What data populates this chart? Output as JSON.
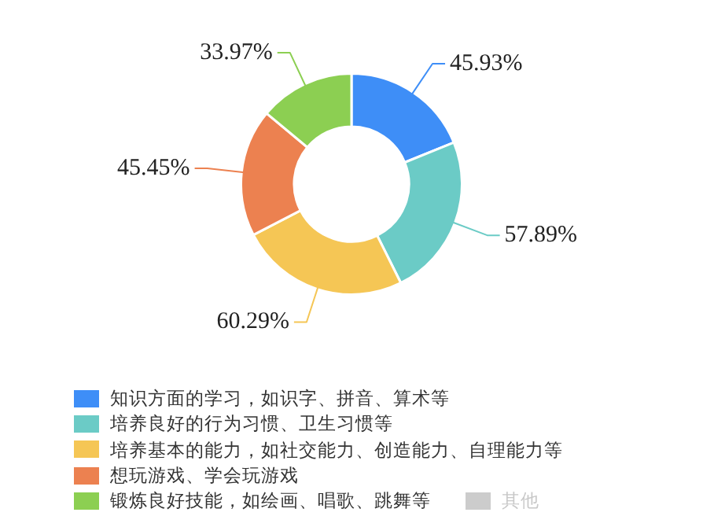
{
  "chart_data": {
    "type": "donut",
    "categories": [
      "知识方面的学习，如识字、拼音、算术等",
      "培养良好的行为习惯、卫生习惯等",
      "培养基本的能力，如社交能力、创造能力、自理能力等",
      "想玩游戏、学会玩游戏",
      "锻炼良好技能，如绘画、唱歌、跳舞等",
      "其他"
    ],
    "values": [
      45.93,
      57.89,
      60.29,
      45.45,
      33.97,
      null
    ],
    "value_labels": [
      "45.93%",
      "57.89%",
      "60.29%",
      "45.45%",
      "33.97%",
      null
    ],
    "colors": [
      "#3e8ef7",
      "#6bcbc6",
      "#f5c655",
      "#ec8150",
      "#8ccf52",
      "#cccccc"
    ],
    "legend": "bottom"
  }
}
